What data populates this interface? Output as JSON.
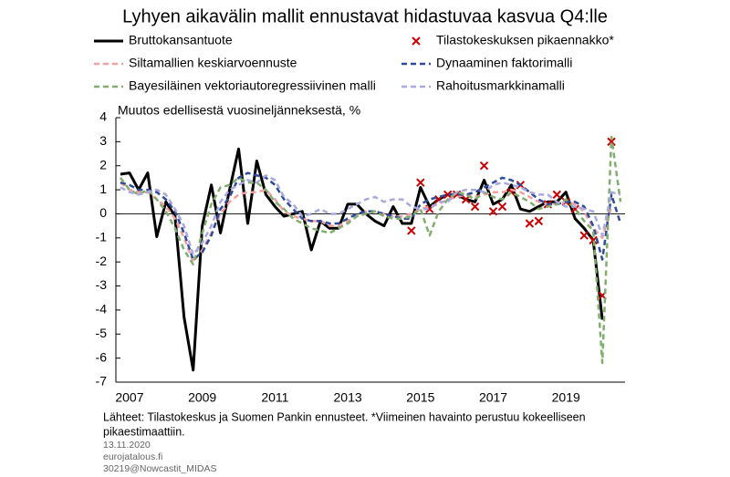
{
  "chart_data": {
    "type": "line",
    "title": "Lyhyen aikavälin mallit ennustavat hidastuvaa kasvua Q4:lle",
    "y_label": "Muutos edellisestä vuosineljänneksestä, %",
    "categories": [
      "2007",
      null,
      null,
      null,
      null,
      null,
      null,
      null,
      "2009",
      null,
      null,
      null,
      null,
      null,
      null,
      null,
      "2011",
      null,
      null,
      null,
      null,
      null,
      null,
      null,
      "2013",
      null,
      null,
      null,
      null,
      null,
      null,
      null,
      "2015",
      null,
      null,
      null,
      null,
      null,
      null,
      null,
      "2017",
      null,
      null,
      null,
      null,
      null,
      null,
      null,
      "2019",
      null,
      null,
      null,
      null,
      null,
      null,
      null
    ],
    "ylim": [
      -7,
      4
    ],
    "yticks": [
      -7,
      -6,
      -5,
      -4,
      -3,
      -2,
      -1,
      0,
      1,
      2,
      3,
      4
    ],
    "grid": false,
    "series": [
      {
        "name": "Bruttokansantuote",
        "color": "#000000",
        "style": "solid",
        "values": [
          1.65,
          1.7,
          1.0,
          1.7,
          -0.95,
          0.5,
          -0.1,
          -4.3,
          -6.5,
          -0.5,
          1.2,
          -0.8,
          1.0,
          2.7,
          -0.4,
          2.2,
          0.8,
          0.3,
          -0.1,
          0.0,
          0.1,
          -1.5,
          -0.3,
          -0.6,
          -0.6,
          0.4,
          0.4,
          0.0,
          -0.3,
          -0.5,
          0.3,
          -0.4,
          -0.4,
          1.1,
          0.3,
          0.6,
          0.8,
          0.8,
          0.6,
          0.5,
          1.4,
          0.4,
          0.6,
          1.2,
          0.2,
          0.1,
          0.3,
          0.5,
          0.5,
          0.9,
          -0.2,
          -0.6,
          -1.1,
          -4.4,
          null,
          null
        ]
      },
      {
        "name": "Tilastokeskuksen pikaennakko*",
        "color": "#cc0000",
        "style": "marker",
        "values": [
          null,
          null,
          null,
          null,
          null,
          null,
          null,
          null,
          null,
          null,
          null,
          null,
          null,
          null,
          null,
          null,
          null,
          null,
          null,
          null,
          null,
          null,
          null,
          null,
          null,
          null,
          null,
          null,
          null,
          null,
          null,
          null,
          -0.7,
          1.3,
          0.2,
          0.6,
          0.8,
          0.8,
          0.6,
          0.3,
          2.0,
          0.1,
          0.3,
          0.9,
          1.2,
          -0.4,
          -0.3,
          0.4,
          0.8,
          0.5,
          0.2,
          -0.9,
          -1.1,
          -3.4,
          3.0,
          null
        ]
      },
      {
        "name": "Siltamallien keskiarvoennuste",
        "color": "#f4a0a0",
        "style": "dashed",
        "values": [
          1.3,
          1.0,
          0.9,
          0.9,
          0.6,
          0.3,
          -0.2,
          -1.0,
          -2.0,
          -1.5,
          -0.8,
          0.0,
          0.5,
          0.8,
          0.9,
          0.9,
          1.0,
          0.6,
          0.1,
          -0.1,
          -0.2,
          -0.3,
          -0.3,
          -0.5,
          -0.5,
          -0.3,
          -0.1,
          0.1,
          0.1,
          0.0,
          -0.1,
          -0.1,
          0.0,
          0.2,
          0.3,
          0.4,
          0.6,
          0.7,
          0.8,
          0.7,
          0.8,
          0.9,
          0.9,
          1.0,
          0.9,
          0.7,
          0.5,
          0.4,
          0.4,
          0.5,
          0.4,
          0.1,
          -0.6,
          -1.0,
          0.3,
          null
        ]
      },
      {
        "name": "Dynaaminen faktorimalli",
        "color": "#2f4b9a",
        "style": "dashed",
        "values": [
          1.3,
          1.2,
          1.0,
          1.0,
          0.9,
          0.6,
          0.1,
          -0.8,
          -1.9,
          -1.6,
          -0.9,
          0.2,
          0.7,
          1.5,
          1.7,
          1.6,
          1.5,
          1.2,
          0.6,
          0.2,
          -0.2,
          -0.3,
          -0.3,
          -0.4,
          -0.4,
          -0.2,
          0.0,
          0.1,
          0.1,
          0.0,
          -0.1,
          -0.2,
          -0.2,
          0.4,
          0.6,
          0.7,
          0.8,
          0.8,
          0.8,
          0.9,
          1.1,
          1.3,
          1.5,
          1.4,
          1.2,
          0.9,
          0.6,
          0.4,
          0.4,
          0.5,
          0.5,
          0.3,
          -0.5,
          -1.9,
          0.8,
          -0.4
        ]
      },
      {
        "name": "Bayesiläinen vektoriautoregressiivinen malli",
        "color": "#7fae6e",
        "style": "dashed",
        "values": [
          1.5,
          1.0,
          0.8,
          1.0,
          0.6,
          0.1,
          -0.6,
          -1.5,
          -2.1,
          -0.8,
          0.4,
          1.1,
          1.2,
          1.5,
          1.3,
          1.3,
          1.0,
          0.5,
          0.2,
          -0.2,
          -0.4,
          -0.6,
          -0.7,
          -0.8,
          -0.6,
          -0.4,
          -0.1,
          0.0,
          0.1,
          -0.1,
          -0.2,
          -0.2,
          -0.1,
          0.2,
          -0.9,
          0.1,
          0.6,
          0.9,
          0.8,
          0.6,
          0.9,
          0.7,
          0.6,
          0.9,
          0.7,
          0.5,
          0.2,
          0.3,
          0.4,
          0.6,
          0.2,
          -0.3,
          -0.7,
          -6.2,
          3.2,
          0.5
        ]
      },
      {
        "name": "Rahoitusmarkkinamalli",
        "color": "#a9a9e0",
        "style": "dashed",
        "values": [
          1.1,
          0.9,
          0.8,
          0.9,
          1.0,
          0.8,
          0.2,
          -0.5,
          -1.7,
          -1.2,
          -0.5,
          0.5,
          1.0,
          1.2,
          1.4,
          1.3,
          1.6,
          1.4,
          0.7,
          0.4,
          -0.1,
          0.0,
          0.2,
          0.0,
          0.0,
          0.2,
          0.4,
          0.6,
          0.7,
          0.5,
          0.6,
          0.6,
          0.3,
          0.2,
          0.2,
          0.5,
          0.5,
          0.9,
          1.0,
          1.0,
          0.9,
          1.2,
          1.3,
          1.2,
          1.1,
          0.9,
          0.8,
          0.8,
          0.5,
          0.3,
          0.3,
          0.2,
          0.1,
          -0.9,
          0.9,
          0.8
        ]
      }
    ],
    "source": [
      "Lähteet: Tilastokeskus ja Suomen Pankin ennusteet. *Viimeinen havainto perustuu kokeelliseen",
      "pikaestimaattiin."
    ],
    "footer": [
      "13.11.2020",
      "eurojatalous.fi",
      "30219@Nowcastit_MIDAS"
    ]
  }
}
